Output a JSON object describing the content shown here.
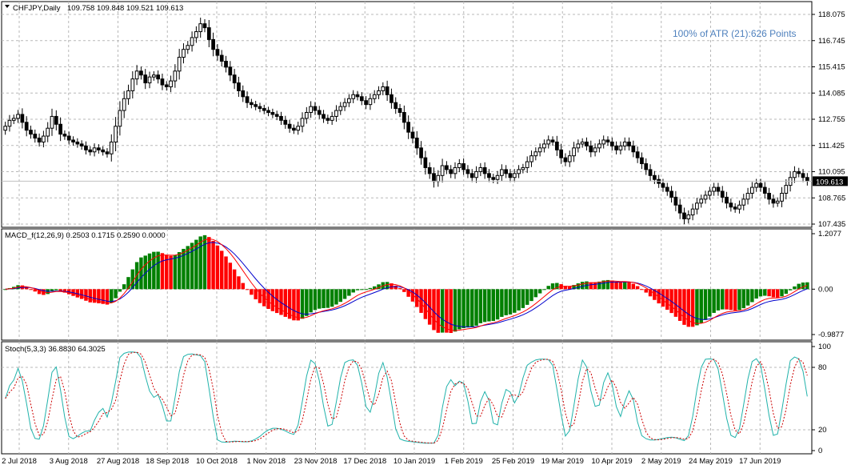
{
  "header": {
    "symbol_label": "CHFJPY,Daily",
    "ohlc_label": "109.758 109.848 109.521 109.613",
    "atr_label": "100% of ATR (21):626 Points",
    "macd_label": "MACD_f(12,26,9) 0.2503 0.1715 0.2590 0.0000",
    "stoch_label": "Stoch(5,3,3) 36.8830 64.3025"
  },
  "colors": {
    "up": "#008000",
    "down": "#ff0000",
    "candle": "#000000",
    "macd_line": "#0000cc",
    "signal_line": "#ff0000",
    "stoch_k": "#20b2aa",
    "stoch_d": "#cc0000",
    "atr_text": "#4f81bd",
    "price_box": "#000000"
  },
  "chart_data": [
    {
      "type": "candlestick",
      "title": "CHFJPY,Daily",
      "ylim": [
        107.435,
        118.075
      ],
      "yticks": [
        "118.075",
        "116.745",
        "115.415",
        "114.085",
        "112.755",
        "111.425",
        "110.095",
        "108.765",
        "107.435"
      ],
      "current_price": "109.613",
      "x_labels": [
        "2 Jul 2018",
        "3 Aug 2018",
        "27 Aug 2018",
        "18 Sep 2018",
        "10 Oct 2018",
        "1 Nov 2018",
        "23 Nov 2018",
        "17 Dec 2018",
        "10 Jan 2019",
        "1 Feb 2019",
        "25 Feb 2019",
        "19 Mar 2019",
        "10 Apr 2019",
        "2 May 2019",
        "24 May 2019",
        "17 Jun 2019"
      ],
      "closes": [
        112.4,
        112.7,
        112.8,
        113.0,
        112.6,
        112.2,
        112.0,
        111.8,
        111.6,
        111.9,
        112.3,
        112.9,
        112.5,
        112.0,
        111.9,
        111.7,
        111.6,
        111.5,
        111.4,
        111.2,
        111.1,
        111.3,
        111.2,
        111.1,
        111.0,
        111.6,
        112.4,
        113.2,
        113.8,
        114.2,
        114.8,
        115.2,
        115.0,
        114.6,
        114.9,
        115.0,
        114.8,
        114.5,
        114.4,
        114.7,
        115.2,
        115.9,
        116.3,
        116.5,
        116.9,
        117.2,
        117.6,
        117.4,
        116.8,
        116.3,
        116.0,
        115.7,
        115.4,
        115.0,
        114.6,
        114.2,
        113.9,
        113.6,
        113.5,
        113.4,
        113.3,
        113.2,
        113.1,
        113.0,
        112.9,
        112.7,
        112.5,
        112.3,
        112.2,
        112.4,
        112.8,
        113.1,
        113.4,
        113.2,
        113.0,
        112.8,
        112.7,
        112.9,
        113.2,
        113.4,
        113.6,
        113.8,
        114.0,
        113.9,
        113.7,
        113.5,
        113.8,
        114.0,
        114.2,
        114.4,
        114.0,
        113.6,
        113.3,
        113.1,
        112.6,
        112.1,
        111.8,
        111.3,
        110.8,
        110.3,
        110.0,
        109.6,
        109.9,
        110.4,
        110.2,
        110.0,
        110.3,
        110.5,
        110.2,
        110.0,
        109.8,
        110.1,
        110.3,
        110.0,
        109.8,
        109.7,
        109.9,
        110.2,
        110.0,
        109.8,
        110.0,
        110.2,
        110.3,
        110.6,
        110.9,
        111.1,
        111.3,
        111.5,
        111.7,
        111.6,
        111.2,
        110.8,
        110.6,
        110.9,
        111.3,
        111.5,
        111.6,
        111.4,
        111.1,
        111.3,
        111.5,
        111.7,
        111.6,
        111.4,
        111.2,
        111.4,
        111.6,
        111.4,
        111.1,
        110.8,
        110.5,
        110.2,
        109.9,
        109.7,
        109.5,
        109.3,
        109.1,
        108.8,
        108.4,
        108.0,
        107.7,
        107.9,
        108.2,
        108.5,
        108.7,
        108.9,
        109.1,
        109.3,
        109.1,
        108.8,
        108.5,
        108.3,
        108.2,
        108.4,
        108.7,
        109.0,
        109.3,
        109.5,
        109.3,
        109.0,
        108.7,
        108.5,
        108.6,
        109.0,
        109.4,
        109.8,
        110.1,
        110.0,
        109.8,
        109.613
      ],
      "series_names": []
    },
    {
      "type": "bar+line",
      "title": "MACD_f(12,26,9)",
      "ylim": [
        -0.9877,
        1.2077
      ],
      "yticks": [
        "1.2077",
        "0.00",
        "-0.9877"
      ],
      "values": {
        "main": 0.2503,
        "signal": 0.1715,
        "histogram": 0.259
      }
    },
    {
      "type": "line",
      "title": "Stoch(5,3,3)",
      "ylim": [
        0,
        100
      ],
      "yticks": [
        "100",
        "80",
        "20",
        "0"
      ],
      "values": {
        "k": 36.883,
        "d": 64.3025
      }
    }
  ]
}
